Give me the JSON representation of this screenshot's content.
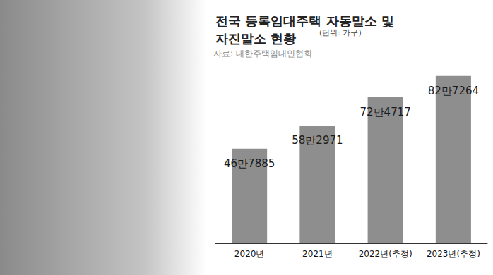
{
  "chart_data": {
    "type": "bar",
    "title": "전국 등록임대주택 자동말소 및\n자진말소 현황",
    "subtitle": "(단위: 가구)",
    "source": "자료: 대한주택임대인협회",
    "categories": [
      "2020년",
      "2021년",
      "2022년(추정)",
      "2023년(추정)"
    ],
    "values": [
      467885,
      582971,
      724717,
      827264
    ],
    "value_labels": [
      "46만7885",
      "58만2971",
      "72만4717",
      "82만7264"
    ],
    "color": "#8e8e8e",
    "ylim": [
      0,
      900000
    ],
    "yticks": [
      0,
      300000,
      600000,
      900000
    ],
    "grid": false,
    "data_labels": true,
    "tick_labels": "x"
  }
}
